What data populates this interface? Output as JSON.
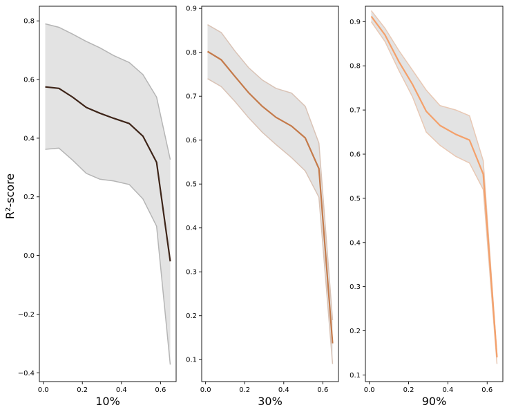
{
  "figure": {
    "ylabel": "R²-score"
  },
  "chart_data": [
    {
      "type": "line",
      "xlabel": "10%",
      "ylabel": "R²-score",
      "grid": false,
      "xlim": [
        -0.02,
        0.68
      ],
      "ylim": [
        -0.43,
        0.85
      ],
      "xticks": [
        "0.0",
        "0.2",
        "0.4",
        "0.6"
      ],
      "yticks": [
        "−0.4",
        "−0.2",
        "0.0",
        "0.2",
        "0.4",
        "0.6",
        "0.8"
      ],
      "series": [
        {
          "color": "#3d2418",
          "band_color": "#e3e3e3",
          "band_edge_color": "#b5b5b5",
          "x": [
            0.01,
            0.08,
            0.15,
            0.22,
            0.29,
            0.36,
            0.44,
            0.51,
            0.58,
            0.65
          ],
          "y": [
            0.575,
            0.57,
            0.54,
            0.505,
            0.485,
            0.468,
            0.45,
            0.407,
            0.318,
            -0.02
          ],
          "upper": [
            0.79,
            0.778,
            0.755,
            0.73,
            0.708,
            0.682,
            0.658,
            0.617,
            0.54,
            0.327
          ],
          "lower": [
            0.362,
            0.366,
            0.325,
            0.28,
            0.26,
            0.254,
            0.242,
            0.193,
            0.1,
            -0.372
          ]
        }
      ]
    },
    {
      "type": "line",
      "xlabel": "30%",
      "grid": false,
      "xlim": [
        -0.02,
        0.68
      ],
      "ylim": [
        0.05,
        0.905
      ],
      "xticks": [
        "0.0",
        "0.2",
        "0.4",
        "0.6"
      ],
      "yticks": [
        "0.1",
        "0.2",
        "0.3",
        "0.4",
        "0.5",
        "0.6",
        "0.7",
        "0.8",
        "0.9"
      ],
      "series": [
        {
          "color": "#c47a4a",
          "band_color": "#e3e3e3",
          "band_edge_color": "#d9c3b6",
          "x": [
            0.01,
            0.08,
            0.15,
            0.22,
            0.29,
            0.36,
            0.44,
            0.51,
            0.58,
            0.65
          ],
          "y": [
            0.802,
            0.783,
            0.745,
            0.708,
            0.677,
            0.652,
            0.632,
            0.605,
            0.535,
            0.137
          ],
          "upper": [
            0.863,
            0.845,
            0.803,
            0.765,
            0.737,
            0.718,
            0.707,
            0.677,
            0.593,
            0.19
          ],
          "lower": [
            0.74,
            0.722,
            0.688,
            0.651,
            0.618,
            0.59,
            0.56,
            0.53,
            0.47,
            0.09
          ]
        }
      ]
    },
    {
      "type": "line",
      "xlabel": "90%",
      "grid": false,
      "xlim": [
        -0.02,
        0.68
      ],
      "ylim": [
        0.085,
        0.935
      ],
      "xticks": [
        "0.0",
        "0.2",
        "0.4",
        "0.6"
      ],
      "yticks": [
        "0.1",
        "0.2",
        "0.3",
        "0.4",
        "0.5",
        "0.6",
        "0.7",
        "0.8",
        "0.9"
      ],
      "series": [
        {
          "color": "#f4a06a",
          "band_color": "#e3e3e3",
          "band_edge_color": "#e8c8b4",
          "x": [
            0.01,
            0.08,
            0.15,
            0.22,
            0.29,
            0.36,
            0.44,
            0.51,
            0.58,
            0.65
          ],
          "y": [
            0.912,
            0.87,
            0.81,
            0.758,
            0.697,
            0.665,
            0.645,
            0.632,
            0.555,
            0.14
          ],
          "upper": [
            0.925,
            0.885,
            0.835,
            0.79,
            0.745,
            0.71,
            0.7,
            0.687,
            0.585,
            0.145
          ],
          "lower": [
            0.9,
            0.855,
            0.79,
            0.73,
            0.65,
            0.62,
            0.595,
            0.58,
            0.52,
            0.125
          ]
        }
      ]
    }
  ]
}
